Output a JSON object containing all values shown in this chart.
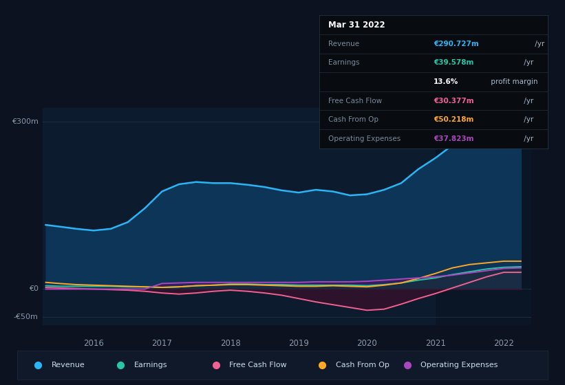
{
  "background_color": "#0c1220",
  "plot_bg_color": "#0d1b2e",
  "highlight_bg_color": "#0a1525",
  "ylabel_300": "€300m",
  "ylabel_0": "€0",
  "ylabel_neg50": "-€50m",
  "xticks": [
    2016,
    2017,
    2018,
    2019,
    2020,
    2021,
    2022
  ],
  "legend": [
    {
      "label": "Revenue",
      "color": "#29b6f6"
    },
    {
      "label": "Earnings",
      "color": "#26c6a6"
    },
    {
      "label": "Free Cash Flow",
      "color": "#f06292"
    },
    {
      "label": "Cash From Op",
      "color": "#ffa726"
    },
    {
      "label": "Operating Expenses",
      "color": "#ab47bc"
    }
  ],
  "x": [
    2015.3,
    2015.5,
    2015.75,
    2016.0,
    2016.25,
    2016.5,
    2016.75,
    2017.0,
    2017.25,
    2017.5,
    2017.75,
    2018.0,
    2018.25,
    2018.5,
    2018.75,
    2019.0,
    2019.25,
    2019.5,
    2019.75,
    2020.0,
    2020.25,
    2020.5,
    2020.75,
    2021.0,
    2021.25,
    2021.5,
    2021.75,
    2022.0,
    2022.25
  ],
  "revenue": [
    115,
    112,
    108,
    105,
    108,
    120,
    145,
    175,
    188,
    192,
    190,
    190,
    187,
    183,
    177,
    173,
    178,
    175,
    168,
    170,
    178,
    190,
    215,
    235,
    258,
    272,
    282,
    289,
    291
  ],
  "earnings": [
    6,
    5,
    5,
    5,
    5,
    4,
    4,
    3,
    4,
    6,
    7,
    9,
    9,
    8,
    8,
    7,
    7,
    7,
    7,
    6,
    8,
    11,
    16,
    20,
    26,
    31,
    36,
    39,
    40
  ],
  "free_cash_flow": [
    3,
    2,
    1,
    0,
    -1,
    -2,
    -4,
    -7,
    -9,
    -7,
    -4,
    -2,
    -4,
    -7,
    -11,
    -17,
    -23,
    -28,
    -33,
    -38,
    -36,
    -27,
    -17,
    -8,
    2,
    12,
    22,
    30,
    30
  ],
  "cash_from_op": [
    12,
    10,
    8,
    7,
    6,
    5,
    4,
    3,
    4,
    6,
    7,
    8,
    8,
    7,
    6,
    5,
    5,
    6,
    5,
    4,
    7,
    11,
    19,
    28,
    38,
    44,
    47,
    50,
    50
  ],
  "operating_expenses": [
    0,
    0,
    0,
    0,
    0,
    0,
    0,
    10,
    11,
    12,
    12,
    12,
    12,
    12,
    12,
    12,
    13,
    13,
    13,
    14,
    16,
    18,
    20,
    22,
    25,
    29,
    33,
    37,
    38
  ],
  "highlight_start": 2021.0,
  "ylim": [
    -65,
    325
  ],
  "xlim_start": 2015.25,
  "xlim_end": 2022.4,
  "tooltip": {
    "title": "Mar 31 2022",
    "rows": [
      {
        "label": "Revenue",
        "value": "€290.727m",
        "extra": " /yr",
        "value_color": "#29b6f6"
      },
      {
        "label": "Earnings",
        "value": "€39.578m",
        "extra": " /yr",
        "value_color": "#26c6a6"
      },
      {
        "label": "",
        "value": "13.6%",
        "extra": " profit margin",
        "value_color": "#ffffff"
      },
      {
        "label": "Free Cash Flow",
        "value": "€30.377m",
        "extra": " /yr",
        "value_color": "#f06292"
      },
      {
        "label": "Cash From Op",
        "value": "€50.218m",
        "extra": " /yr",
        "value_color": "#ffa726"
      },
      {
        "label": "Operating Expenses",
        "value": "€37.823m",
        "extra": " /yr",
        "value_color": "#ab47bc"
      }
    ]
  }
}
